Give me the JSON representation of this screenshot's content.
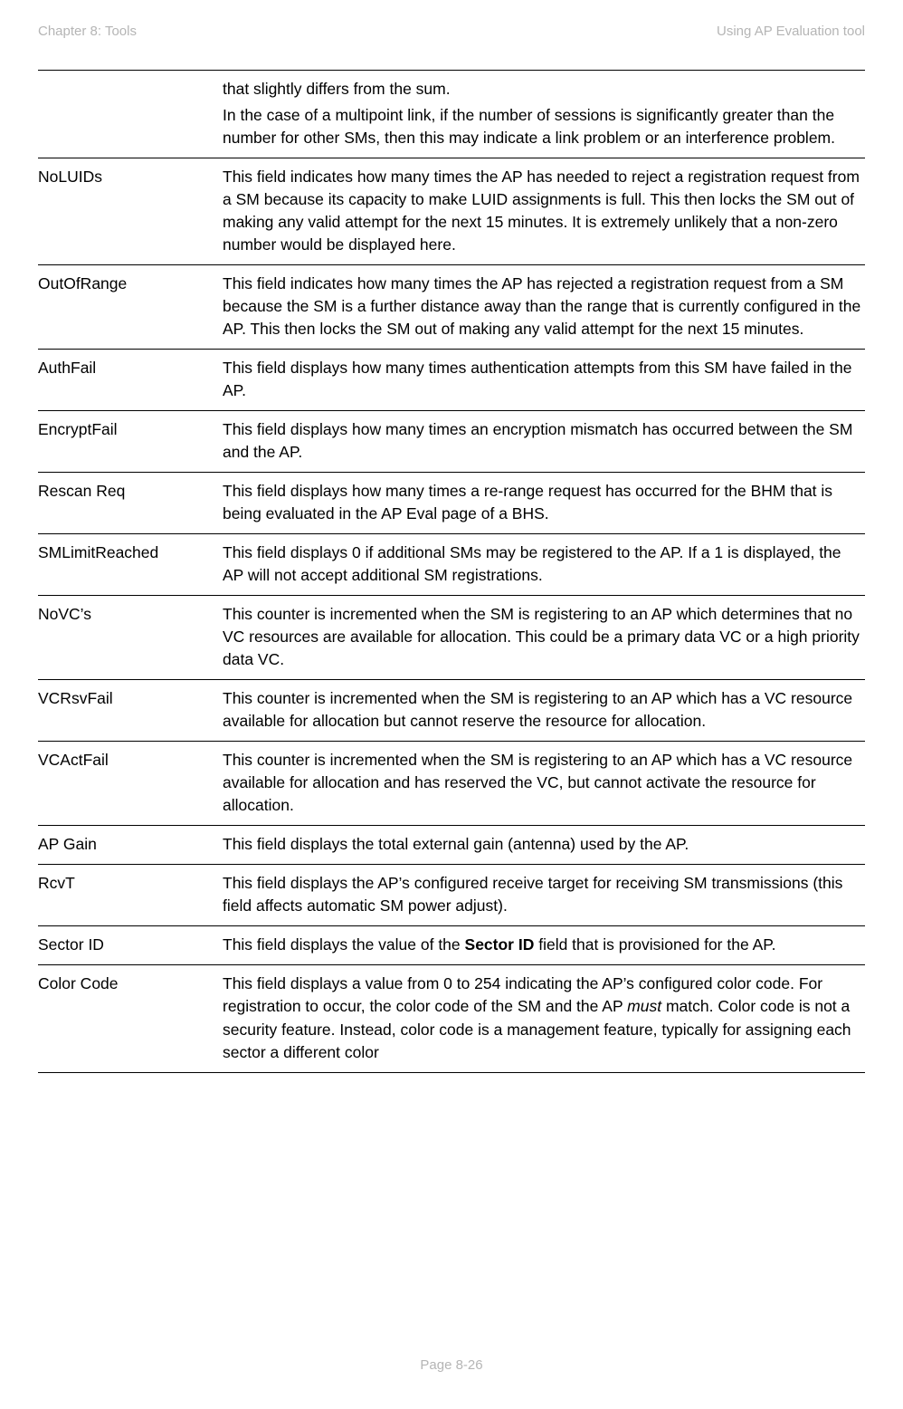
{
  "header": {
    "left": "Chapter 8:  Tools",
    "right": "Using AP Evaluation tool"
  },
  "rows": [
    {
      "term": "",
      "paras": [
        {
          "segments": [
            {
              "t": "that slightly differs from the sum."
            }
          ]
        },
        {
          "segments": [
            {
              "t": "In the case of a multipoint link, if the number of sessions is significantly greater than the number for other SMs, then this may indicate a link problem or an interference problem."
            }
          ]
        }
      ]
    },
    {
      "term": "NoLUIDs",
      "paras": [
        {
          "segments": [
            {
              "t": "This field indicates how many times the AP has needed to reject a registration request from a SM because its capacity to make LUID assignments is full. This then locks the SM out of making any valid attempt for the next 15 minutes. It is extremely unlikely that a non-zero number would be displayed here."
            }
          ]
        }
      ]
    },
    {
      "term": "OutOfRange",
      "paras": [
        {
          "segments": [
            {
              "t": "This field indicates how many times the AP has rejected a registration request from a SM because the SM is a further distance away than the range that is currently configured in the AP. This then locks the SM out of making any valid attempt for the next 15 minutes."
            }
          ]
        }
      ]
    },
    {
      "term": "AuthFail",
      "paras": [
        {
          "segments": [
            {
              "t": "This field displays how many times authentication attempts from this SM have failed in the AP."
            }
          ]
        }
      ]
    },
    {
      "term": "EncryptFail",
      "paras": [
        {
          "segments": [
            {
              "t": "This field displays how many times an encryption mismatch has occurred between the SM and the AP."
            }
          ]
        }
      ]
    },
    {
      "term": "Rescan Req",
      "paras": [
        {
          "segments": [
            {
              "t": "This field displays how many times a re-range request has occurred for the BHM that is being evaluated in the AP Eval page of a BHS."
            }
          ]
        }
      ]
    },
    {
      "term": "SMLimitReached",
      "paras": [
        {
          "segments": [
            {
              "t": "This field displays 0 if additional SMs may be registered to the AP. If a 1 is displayed, the AP will not accept additional SM registrations."
            }
          ]
        }
      ]
    },
    {
      "term": "NoVC’s",
      "paras": [
        {
          "segments": [
            {
              "t": "This counter is incremented when the SM is registering to an AP which determines that no VC resources are available for allocation. This could be a primary data VC or a high priority data VC."
            }
          ]
        }
      ]
    },
    {
      "term": "VCRsvFail",
      "paras": [
        {
          "segments": [
            {
              "t": "This counter is incremented when the SM is registering to an AP which has a VC resource available for allocation but cannot reserve the resource for allocation."
            }
          ]
        }
      ]
    },
    {
      "term": "VCActFail",
      "paras": [
        {
          "segments": [
            {
              "t": "This counter is incremented when the SM is registering to an AP which has a VC resource available for allocation and has reserved the VC, but cannot activate the resource for allocation."
            }
          ]
        }
      ]
    },
    {
      "term": "AP Gain",
      "paras": [
        {
          "segments": [
            {
              "t": "This field displays the total external gain (antenna) used by the AP."
            }
          ]
        }
      ]
    },
    {
      "term": "RcvT",
      "paras": [
        {
          "segments": [
            {
              "t": "This field displays the AP’s configured receive target for receiving SM transmissions (this field affects automatic SM power adjust)."
            }
          ]
        }
      ]
    },
    {
      "term": "Sector ID",
      "paras": [
        {
          "segments": [
            {
              "t": "This field displays the value of the "
            },
            {
              "t": "Sector ID",
              "bold": true
            },
            {
              "t": " field that is provisioned for the AP."
            }
          ]
        }
      ]
    },
    {
      "term": "Color Code",
      "paras": [
        {
          "segments": [
            {
              "t": "This field displays a value from 0 to 254 indicating the AP’s configured color code. For registration to occur, the color code of the SM and the AP "
            },
            {
              "t": "must",
              "italic": true
            },
            {
              "t": " match. Color code is not a security feature. Instead, color code is a management feature, typically for assigning each sector a different color"
            }
          ]
        }
      ]
    }
  ],
  "footer": "Page 8-26"
}
